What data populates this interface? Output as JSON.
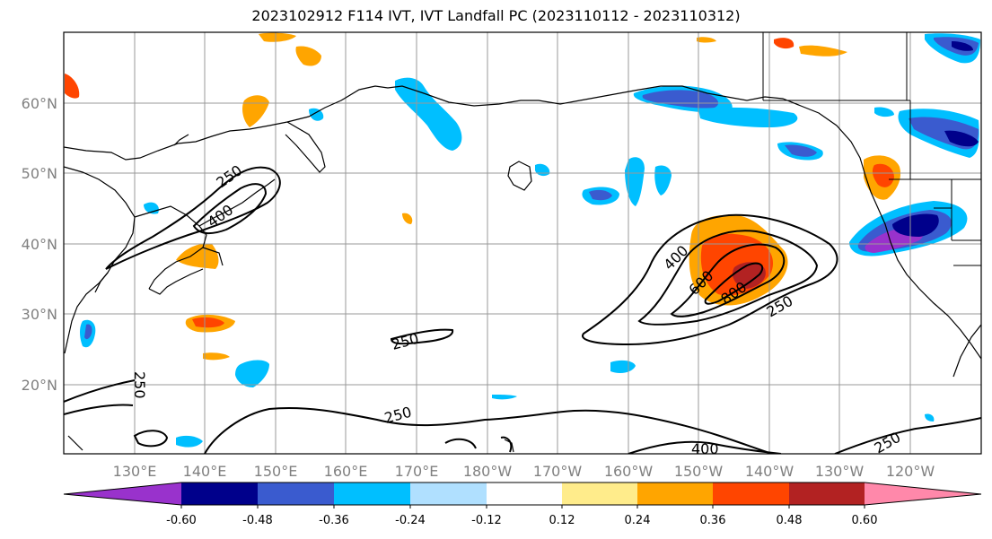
{
  "title": "2023102912 F114 IVT, IVT Landfall PC (2023110112 - 2023110312)",
  "lon_labels": [
    "130°E",
    "140°E",
    "150°E",
    "160°E",
    "170°E",
    "180°W",
    "170°W",
    "160°W",
    "150°W",
    "140°W",
    "130°W",
    "120°W"
  ],
  "lat_labels": [
    "60°N",
    "50°N",
    "40°N",
    "30°N",
    "20°N"
  ],
  "contour_labels": [
    "250",
    "400",
    "250",
    "400",
    "600",
    "800",
    "250",
    "250",
    "250",
    "400",
    "250"
  ],
  "colorbar": {
    "ticks": [
      "-0.60",
      "-0.48",
      "-0.36",
      "-0.24",
      "-0.12",
      "0.12",
      "0.24",
      "0.36",
      "0.48",
      "0.60"
    ],
    "colors": [
      "#9932cc",
      "#00008b",
      "#3a5bcf",
      "#00bfff",
      "#b0e0ff",
      "#ffffff",
      "#ffec8b",
      "#ffa500",
      "#ff4500",
      "#b22222",
      "#ff88aa"
    ]
  },
  "map_data": {
    "region": "North Pacific",
    "lon_range": [
      "120°E",
      "125°W"
    ],
    "lat_range": [
      "10°N",
      "70°N"
    ],
    "ivt_contours": [
      250,
      400,
      600,
      800
    ],
    "features": [
      {
        "name": "NE Pacific atmospheric river",
        "pc_sign": "positive",
        "max_contour": 800
      },
      {
        "name": "Pacific Northwest negative PC",
        "pc_sign": "negative"
      },
      {
        "name": "NW Pacific jet IVT",
        "max_contour": 400
      }
    ]
  }
}
